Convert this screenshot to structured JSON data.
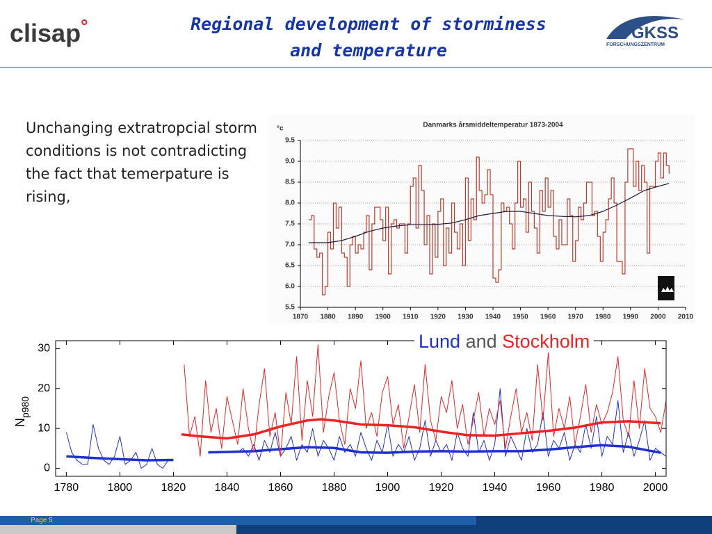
{
  "logo_left": {
    "name": "clisap",
    "mark": "°"
  },
  "logo_right": {
    "name": "GKSS",
    "subtitle": "FORSCHUNGSZENTRUM"
  },
  "title": [
    "Regional development of storminess",
    "and temperature"
  ],
  "body_text": "Unchanging extratropcial storm conditions is not contradicting the fact that temerpature is rising,",
  "footer": "Page 5",
  "chart_data": [
    {
      "type": "line",
      "title": "Danmarks årsmiddeltemperatur 1873-2004",
      "ylabel": "°c",
      "xlim": [
        1870,
        2010
      ],
      "xticks": [
        1870,
        1880,
        1890,
        1900,
        1910,
        1920,
        1930,
        1940,
        1950,
        1960,
        1970,
        1980,
        1990,
        2000,
        2010
      ],
      "ylim": [
        5.5,
        9.5
      ],
      "yticks": [
        5.5,
        {
          "value": 6,
          "label": "6.0"
        },
        6.5,
        {
          "value": 7,
          "label": "7.0"
        },
        7.5,
        {
          "value": 8,
          "label": "8.0"
        },
        8.5,
        {
          "value": 9,
          "label": "9.0"
        },
        9.5
      ],
      "grid": true,
      "series": [
        {
          "color": "#c0392b",
          "drawstyle": "steps",
          "x": [
            1873,
            1874,
            1875,
            1876,
            1877,
            1878,
            1879,
            1880,
            1881,
            1882,
            1883,
            1884,
            1885,
            1886,
            1887,
            1888,
            1889,
            1890,
            1891,
            1892,
            1893,
            1894,
            1895,
            1896,
            1897,
            1898,
            1899,
            1900,
            1901,
            1902,
            1903,
            1904,
            1905,
            1906,
            1907,
            1908,
            1909,
            1910,
            1911,
            1912,
            1913,
            1914,
            1915,
            1916,
            1917,
            1918,
            1919,
            1920,
            1921,
            1922,
            1923,
            1924,
            1925,
            1926,
            1927,
            1928,
            1929,
            1930,
            1931,
            1932,
            1933,
            1934,
            1935,
            1936,
            1937,
            1938,
            1939,
            1940,
            1941,
            1942,
            1943,
            1944,
            1945,
            1946,
            1947,
            1948,
            1949,
            1950,
            1951,
            1952,
            1953,
            1954,
            1955,
            1956,
            1957,
            1958,
            1959,
            1960,
            1961,
            1962,
            1963,
            1964,
            1965,
            1966,
            1967,
            1968,
            1969,
            1970,
            1971,
            1972,
            1973,
            1974,
            1975,
            1976,
            1977,
            1978,
            1979,
            1980,
            1981,
            1982,
            1983,
            1984,
            1985,
            1986,
            1987,
            1988,
            1989,
            1990,
            1991,
            1992,
            1993,
            1994,
            1995,
            1996,
            1997,
            1998,
            1999,
            2000,
            2001,
            2002,
            2003,
            2004
          ],
          "values": [
            7.6,
            7.7,
            6.9,
            6.7,
            6.8,
            5.8,
            6.0,
            7.3,
            6.9,
            8.0,
            7.4,
            7.9,
            6.8,
            6.7,
            6.0,
            7.0,
            7.2,
            6.8,
            7.0,
            6.9,
            7.3,
            7.7,
            6.4,
            7.5,
            7.9,
            7.9,
            7.6,
            7.1,
            7.9,
            6.3,
            7.5,
            7.6,
            7.4,
            7.5,
            7.5,
            6.8,
            7.5,
            8.4,
            8.6,
            7.4,
            8.9,
            8.3,
            7.0,
            7.7,
            6.3,
            7.5,
            6.7,
            7.8,
            8.1,
            6.5,
            7.4,
            6.8,
            8.0,
            7.3,
            6.9,
            7.5,
            6.5,
            8.6,
            7.1,
            8.1,
            7.6,
            9.1,
            8.3,
            8.0,
            8.2,
            8.8,
            8.2,
            6.2,
            6.1,
            6.4,
            8.0,
            7.8,
            7.9,
            7.5,
            6.9,
            8.0,
            9.0,
            7.9,
            8.1,
            7.3,
            8.5,
            7.8,
            7.4,
            6.8,
            8.3,
            7.8,
            8.6,
            7.9,
            8.3,
            7.2,
            6.9,
            7.6,
            7.0,
            7.0,
            8.1,
            7.7,
            6.6,
            7.1,
            7.9,
            7.6,
            8.0,
            8.5,
            8.5,
            7.7,
            7.8,
            7.2,
            6.6,
            7.3,
            7.6,
            8.1,
            8.6,
            8.0,
            6.6,
            6.6,
            6.3,
            8.5,
            9.3,
            9.3,
            8.4,
            9.0,
            8.3,
            8.9,
            8.5,
            6.8,
            8.4,
            8.4,
            9.0,
            9.2,
            8.6,
            9.2,
            8.9,
            8.7
          ]
        },
        {
          "color": "#1a1a3a",
          "x": [
            1873,
            1880,
            1885,
            1890,
            1895,
            1900,
            1905,
            1910,
            1915,
            1920,
            1925,
            1930,
            1935,
            1940,
            1945,
            1950,
            1955,
            1960,
            1965,
            1970,
            1975,
            1980,
            1985,
            1990,
            1995,
            2000,
            2004
          ],
          "values": [
            7.05,
            7.05,
            7.1,
            7.2,
            7.32,
            7.4,
            7.45,
            7.48,
            7.48,
            7.49,
            7.52,
            7.6,
            7.7,
            7.75,
            7.8,
            7.8,
            7.75,
            7.7,
            7.68,
            7.67,
            7.7,
            7.8,
            7.95,
            8.12,
            8.3,
            8.4,
            8.47
          ]
        }
      ]
    },
    {
      "type": "line",
      "ylabel": "N",
      "ylabel_sub": "p980",
      "legend_joiner": "and",
      "xlim": [
        1776,
        2004
      ],
      "xticks": [
        1780,
        1800,
        1820,
        1840,
        1860,
        1880,
        1900,
        1920,
        1940,
        1960,
        1980,
        2000
      ],
      "ylim": [
        -2,
        32
      ],
      "yticks": [
        0,
        10,
        20,
        30
      ],
      "grid": false,
      "series": [
        {
          "name": "Lund",
          "color": "#1f2fd0",
          "x": [
            1780,
            1782,
            1784,
            1786,
            1788,
            1790,
            1792,
            1794,
            1796,
            1798,
            1800,
            1802,
            1804,
            1806,
            1808,
            1810,
            1812,
            1814,
            1816,
            1818,
            1820,
            1822,
            1824,
            1826,
            1828,
            1830,
            1832,
            1834,
            1836,
            1838,
            1840,
            1842,
            1844,
            1846,
            1848,
            1850,
            1852,
            1854,
            1856,
            1858,
            1860,
            1862,
            1864,
            1866,
            1868,
            1870,
            1872,
            1874,
            1876,
            1878,
            1880,
            1882,
            1884,
            1886,
            1888,
            1890,
            1892,
            1894,
            1896,
            1898,
            1900,
            1902,
            1904,
            1906,
            1908,
            1910,
            1912,
            1914,
            1916,
            1918,
            1920,
            1922,
            1924,
            1926,
            1928,
            1930,
            1932,
            1934,
            1936,
            1938,
            1940,
            1942,
            1944,
            1946,
            1948,
            1950,
            1952,
            1954,
            1956,
            1958,
            1960,
            1962,
            1964,
            1966,
            1968,
            1970,
            1972,
            1974,
            1976,
            1978,
            1980,
            1982,
            1984,
            1986,
            1988,
            1990,
            1992,
            1994,
            1996,
            1998,
            2000,
            2002,
            2004
          ],
          "values": [
            9,
            4,
            2,
            1,
            1,
            11,
            5,
            2,
            1,
            3,
            8,
            1,
            2,
            4,
            0,
            1,
            5,
            1,
            0,
            2,
            2,
            null,
            null,
            null,
            null,
            null,
            null,
            null,
            null,
            null,
            null,
            null,
            4,
            5,
            3,
            6,
            2,
            7,
            4,
            9,
            3,
            5,
            8,
            2,
            6,
            4,
            10,
            3,
            7,
            5,
            2,
            8,
            4,
            6,
            3,
            9,
            5,
            2,
            7,
            4,
            11,
            3,
            6,
            4,
            8,
            2,
            5,
            12,
            3,
            7,
            4,
            6,
            2,
            9,
            5,
            3,
            14,
            4,
            7,
            2,
            6,
            20,
            3,
            8,
            5,
            2,
            10,
            4,
            6,
            14,
            3,
            7,
            5,
            9,
            2,
            6,
            4,
            11,
            5,
            13,
            3,
            8,
            6,
            17,
            4,
            9,
            3,
            7,
            12,
            2,
            5,
            4,
            3
          ]
        },
        {
          "color": "#1f2fd0",
          "width": 3.5,
          "x": [
            1780,
            1790,
            1800,
            1810,
            1820,
            1825,
            1833,
            1840,
            1850,
            1860,
            1870,
            1880,
            1890,
            1900,
            1910,
            1920,
            1930,
            1940,
            1950,
            1960,
            1970,
            1980,
            1990,
            2002
          ],
          "values": [
            3.0,
            2.6,
            2.3,
            2.0,
            2.1,
            null,
            4.0,
            4.1,
            4.3,
            4.8,
            5.3,
            5.1,
            4.0,
            3.9,
            4.2,
            4.3,
            4.2,
            4.3,
            4.3,
            4.7,
            5.3,
            5.8,
            5.4,
            3.9
          ]
        },
        {
          "name": "Stockholm",
          "color": "#ee2222",
          "x": [
            1824,
            1826,
            1828,
            1830,
            1832,
            1834,
            1836,
            1838,
            1840,
            1842,
            1844,
            1846,
            1848,
            1850,
            1852,
            1854,
            1856,
            1858,
            1860,
            1862,
            1864,
            1866,
            1868,
            1870,
            1872,
            1874,
            1876,
            1878,
            1880,
            1882,
            1884,
            1886,
            1888,
            1890,
            1892,
            1894,
            1896,
            1898,
            1900,
            1902,
            1904,
            1906,
            1908,
            1910,
            1912,
            1914,
            1916,
            1918,
            1920,
            1922,
            1924,
            1926,
            1928,
            1930,
            1932,
            1934,
            1936,
            1938,
            1940,
            1942,
            1944,
            1946,
            1948,
            1950,
            1952,
            1954,
            1956,
            1958,
            1960,
            1962,
            1964,
            1966,
            1968,
            1970,
            1972,
            1974,
            1976,
            1978,
            1980,
            1982,
            1984,
            1986,
            1988,
            1990,
            1992,
            1994,
            1996,
            1998,
            2000,
            2002,
            2004
          ],
          "values": [
            26,
            8,
            13,
            3,
            22,
            9,
            15,
            5,
            18,
            12,
            6,
            20,
            10,
            4,
            16,
            25,
            8,
            14,
            3,
            19,
            11,
            28,
            7,
            22,
            13,
            31,
            9,
            18,
            24,
            12,
            6,
            20,
            15,
            27,
            10,
            14,
            8,
            19,
            23,
            11,
            16,
            5,
            13,
            21,
            9,
            26,
            12,
            7,
            18,
            14,
            22,
            10,
            16,
            6,
            12,
            19,
            8,
            15,
            11,
            17,
            5,
            13,
            20,
            9,
            14,
            7,
            26,
            12,
            29,
            8,
            15,
            10,
            18,
            6,
            13,
            21,
            9,
            16,
            11,
            14,
            19,
            28,
            12,
            8,
            22,
            10,
            25,
            15,
            13,
            9,
            17
          ]
        },
        {
          "color": "#ee2222",
          "width": 3.5,
          "x": [
            1823,
            1830,
            1840,
            1850,
            1860,
            1870,
            1875,
            1880,
            1890,
            1900,
            1910,
            1920,
            1930,
            1940,
            1950,
            1960,
            1970,
            1980,
            1990,
            2002
          ],
          "values": [
            8.5,
            8.0,
            7.5,
            8.5,
            10.5,
            12.0,
            12.3,
            12.0,
            11.0,
            10.8,
            10.3,
            9.2,
            8.3,
            8.2,
            8.8,
            9.4,
            10.2,
            11.5,
            11.8,
            11.3
          ]
        }
      ]
    }
  ]
}
